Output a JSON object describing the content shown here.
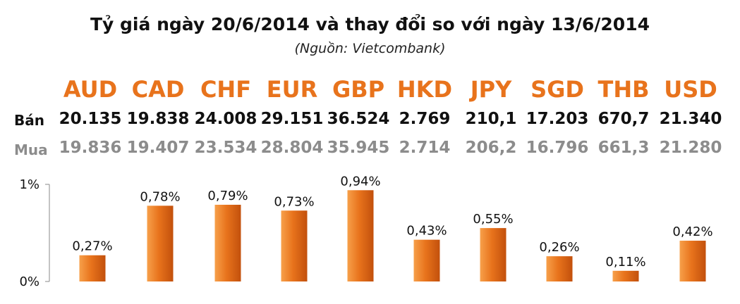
{
  "title": "Tỷ giá ngày 20/6/2014 và thay đổi so với ngày 13/6/2014",
  "subtitle": "(Nguồn: Vietcombank)",
  "rows": {
    "ban_label": "Bán",
    "mua_label": "Mua"
  },
  "currencies": [
    {
      "code": "AUD",
      "ban": "20.135",
      "mua": "19.836"
    },
    {
      "code": "CAD",
      "ban": "19.838",
      "mua": "19.407"
    },
    {
      "code": "CHF",
      "ban": "24.008",
      "mua": "23.534"
    },
    {
      "code": "EUR",
      "ban": "29.151",
      "mua": "28.804"
    },
    {
      "code": "GBP",
      "ban": "36.524",
      "mua": "35.945"
    },
    {
      "code": "HKD",
      "ban": "2.769",
      "mua": "2.714"
    },
    {
      "code": "JPY",
      "ban": "210,1",
      "mua": "206,2"
    },
    {
      "code": "SGD",
      "ban": "17.203",
      "mua": "16.796"
    },
    {
      "code": "THB",
      "ban": "670,7",
      "mua": "661,3"
    },
    {
      "code": "USD",
      "ban": "21.340",
      "mua": "21.280"
    }
  ],
  "colors": {
    "accent": "#e8731c",
    "bar_light": "#f7a04a",
    "bar_dark": "#c2500c",
    "mua_text": "#8c8c8c"
  },
  "chart_data": {
    "type": "bar",
    "categories": [
      "AUD",
      "CAD",
      "CHF",
      "EUR",
      "GBP",
      "HKD",
      "JPY",
      "SGD",
      "THB",
      "USD"
    ],
    "values": [
      0.27,
      0.78,
      0.79,
      0.73,
      0.94,
      0.43,
      0.55,
      0.26,
      0.11,
      0.42
    ],
    "data_labels": [
      "0,27%",
      "0,78%",
      "0,79%",
      "0,73%",
      "0,94%",
      "0,43%",
      "0,55%",
      "0,26%",
      "0,11%",
      "0,42%"
    ],
    "ylim": [
      0,
      1
    ],
    "ytick_labels": [
      "0%",
      "1%"
    ],
    "xlabel": "",
    "ylabel": "",
    "grid": false
  }
}
